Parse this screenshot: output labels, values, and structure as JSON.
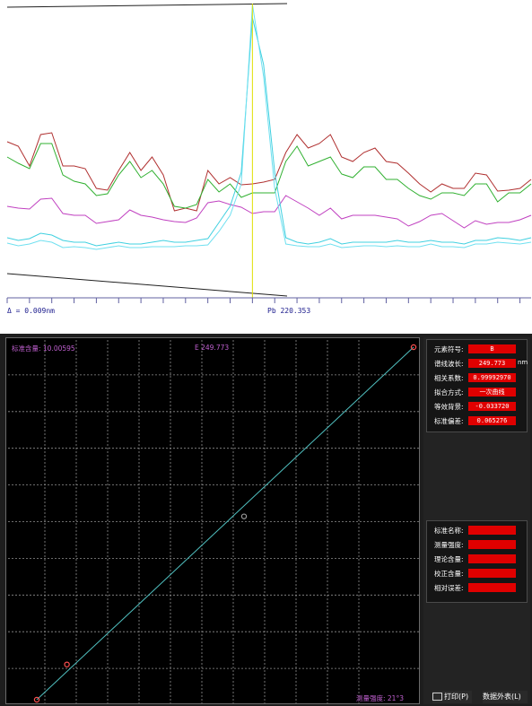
{
  "spectrum": {
    "delta_label": "Δ = 0.009nm",
    "element_wavelength_label": "Pb 220.353",
    "colors": {
      "red": "#b03030",
      "green": "#30b030",
      "magenta": "#c040c0",
      "cyan_a": "#40d0e0",
      "cyan_b": "#70e0f0",
      "marker": "#e0e000",
      "axis": "#6060a0"
    },
    "series": [
      {
        "color_key": "red",
        "values": [
          158,
          163,
          185,
          150,
          148,
          185,
          185,
          188,
          210,
          212,
          190,
          170,
          190,
          175,
          195,
          235,
          232,
          235,
          190,
          205,
          198,
          206,
          205,
          203,
          200,
          170,
          150,
          165,
          160,
          150,
          175,
          180,
          170,
          165,
          180,
          182,
          193,
          205,
          214,
          205,
          210,
          210,
          193,
          195,
          213,
          212,
          210,
          200
        ]
      },
      {
        "color_key": "green",
        "values": [
          175,
          182,
          188,
          160,
          160,
          195,
          202,
          205,
          218,
          216,
          195,
          180,
          198,
          190,
          205,
          230,
          232,
          228,
          200,
          214,
          205,
          220,
          215,
          215,
          215,
          180,
          163,
          185,
          180,
          175,
          194,
          198,
          186,
          186,
          200,
          200,
          210,
          218,
          222,
          215,
          215,
          218,
          205,
          205,
          225,
          215,
          215,
          205
        ]
      },
      {
        "color_key": "magenta",
        "values": [
          230,
          232,
          233,
          222,
          221,
          238,
          240,
          240,
          249,
          247,
          245,
          234,
          240,
          242,
          245,
          247,
          248,
          243,
          226,
          224,
          228,
          231,
          238,
          236,
          236,
          218,
          225,
          232,
          240,
          232,
          244,
          240,
          240,
          240,
          242,
          244,
          252,
          247,
          240,
          238,
          246,
          254,
          246,
          250,
          248,
          248,
          245,
          240
        ]
      },
      {
        "color_key": "cyan_a",
        "values": [
          265,
          268,
          266,
          260,
          262,
          268,
          270,
          270,
          274,
          272,
          270,
          272,
          272,
          270,
          268,
          270,
          270,
          268,
          266,
          248,
          230,
          192,
          20,
          72,
          192,
          265,
          270,
          272,
          270,
          266,
          272,
          270,
          270,
          270,
          270,
          268,
          270,
          270,
          268,
          270,
          270,
          272,
          268,
          268,
          265,
          266,
          268,
          265
        ]
      },
      {
        "color_key": "cyan_b",
        "values": [
          271,
          274,
          272,
          268,
          270,
          276,
          275,
          276,
          278,
          276,
          274,
          276,
          276,
          275,
          275,
          275,
          274,
          274,
          273,
          258,
          240,
          205,
          5,
          85,
          210,
          272,
          274,
          275,
          275,
          272,
          276,
          275,
          274,
          274,
          275,
          274,
          275,
          275,
          272,
          275,
          275,
          276,
          272,
          272,
          270,
          271,
          272,
          270
        ]
      }
    ],
    "ylim": [
      0,
      330
    ],
    "peak_index": 22
  },
  "chart_data": [
    {
      "type": "line",
      "title": "",
      "xlabel": "",
      "ylabel": "",
      "series": [
        {
          "name": "",
          "values": [
            158,
            163,
            185,
            150,
            148,
            185,
            185,
            188,
            210,
            212,
            190,
            170,
            190,
            175,
            195,
            235,
            232,
            235,
            190,
            205,
            198,
            206,
            205,
            203,
            200,
            170,
            150,
            165,
            160,
            150,
            175,
            180,
            170,
            165,
            180,
            182,
            193,
            205,
            214,
            205,
            210,
            210,
            193,
            195,
            213,
            212,
            210,
            200
          ]
        }
      ]
    },
    {
      "type": "scatter",
      "title": "",
      "xlabel": "",
      "ylabel": "",
      "xlim": [
        0,
        10
      ],
      "ylim": [
        0,
        10
      ],
      "points": [
        {
          "x": 0.0,
          "y": 0.0,
          "kind": "standard"
        },
        {
          "x": 0.8,
          "y": 1.0,
          "kind": "standard"
        },
        {
          "x": 5.5,
          "y": 5.2,
          "kind": "sample"
        },
        {
          "x": 10.0,
          "y": 10.0,
          "kind": "standard"
        }
      ],
      "fit_line": [
        [
          0,
          0
        ],
        [
          10,
          10
        ]
      ]
    }
  ],
  "calibration": {
    "top_left_label": "标准含量: 10.00595",
    "top_mid_label": "E 249.773",
    "bottom_right_label": "测量强度:   21°3",
    "grid_cols": 12,
    "grid_rows": 10,
    "colors": {
      "background": "#000000",
      "grid": "#909090",
      "fit": "#50c0c0",
      "std_point": "#ff5050",
      "sample_point": "#9a9a9a"
    }
  },
  "side": {
    "group1": [
      {
        "key": "元素符号:",
        "value": "B",
        "unit": ""
      },
      {
        "key": "谱线波长:",
        "value": "249.773",
        "unit": "nm"
      },
      {
        "key": "相关系数:",
        "value": "0.99992970",
        "unit": ""
      },
      {
        "key": "拟合方式:",
        "value": "一次曲线",
        "unit": ""
      },
      {
        "key": "等效背景:",
        "value": "-0.033720",
        "unit": ""
      },
      {
        "key": "标准偏差:",
        "value": "0.065276",
        "unit": ""
      }
    ],
    "group2": [
      {
        "key": "标准名称:",
        "value": "",
        "unit": ""
      },
      {
        "key": "测量强度:",
        "value": "",
        "unit": ""
      },
      {
        "key": "理论含量:",
        "value": "",
        "unit": ""
      },
      {
        "key": "校正含量:",
        "value": "",
        "unit": ""
      },
      {
        "key": "相对误差:",
        "value": "",
        "unit": ""
      }
    ],
    "print_label": "打印(P)",
    "export_label": "数据外表(L)"
  }
}
